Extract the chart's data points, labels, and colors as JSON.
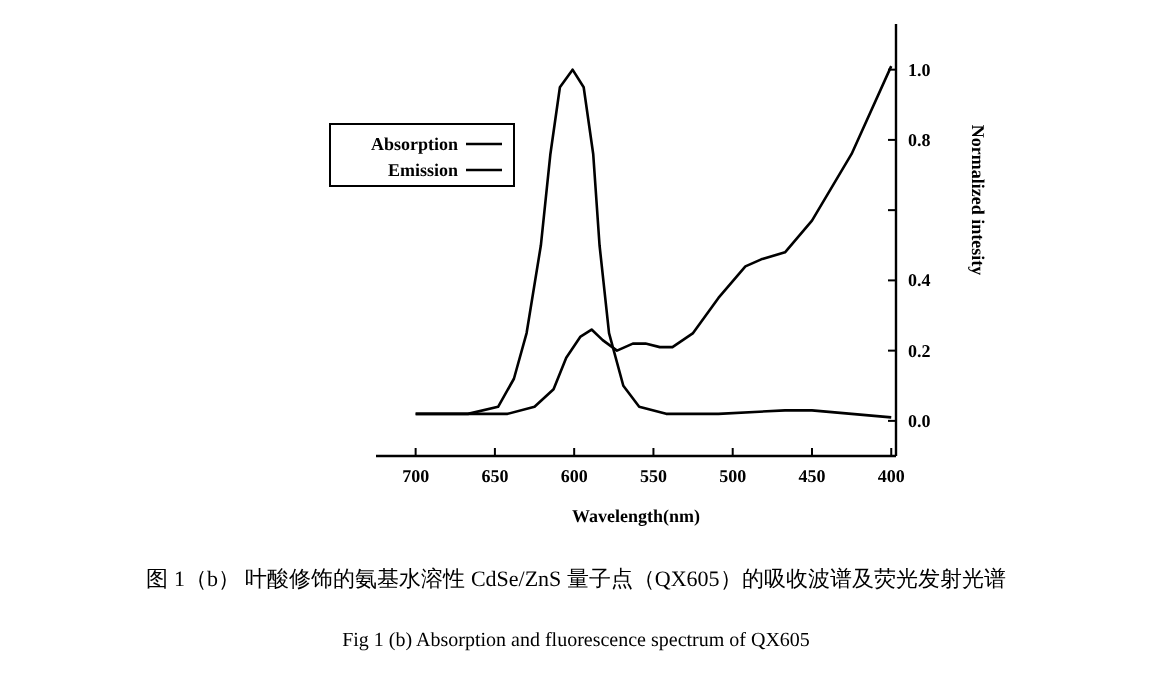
{
  "chart_data": {
    "type": "line",
    "xlabel": "Wavelength(nm)",
    "ylabel": "Normalized intesity",
    "xlim": [
      725,
      397
    ],
    "xticks": [
      400,
      450,
      500,
      550,
      600,
      650,
      700
    ],
    "ylim": [
      -0.1,
      1.13
    ],
    "yticks": [
      {
        "value": 0,
        "label": "0.0"
      },
      {
        "value": 0.2,
        "label": "0.2"
      },
      {
        "value": 0.4,
        "label": "0.4"
      },
      {
        "value": 0.6,
        "label": null
      },
      {
        "value": 0.8,
        "label": "0.8"
      },
      {
        "value": 1,
        "label": "1.0"
      }
    ],
    "legend": "top left",
    "grid": false,
    "series": [
      {
        "name": "Absorption",
        "color": "#000000",
        "x": [
          400,
          425,
          450,
          467,
          482,
          492,
          509,
          525,
          538,
          546,
          555,
          563,
          573,
          582,
          589,
          596,
          605,
          613,
          625,
          642,
          675,
          700
        ],
        "values": [
          1.01,
          0.76,
          0.57,
          0.48,
          0.46,
          0.44,
          0.35,
          0.25,
          0.21,
          0.21,
          0.22,
          0.22,
          0.2,
          0.23,
          0.26,
          0.24,
          0.18,
          0.09,
          0.04,
          0.02,
          0.02,
          0.02
        ]
      },
      {
        "name": "Emission",
        "color": "#000000",
        "x": [
          400,
          425,
          450,
          467,
          509,
          542,
          559,
          569,
          578,
          584,
          588,
          594,
          601,
          609,
          615,
          621,
          630,
          638,
          648,
          667,
          700
        ],
        "values": [
          0.01,
          0.02,
          0.03,
          0.03,
          0.02,
          0.02,
          0.04,
          0.1,
          0.25,
          0.5,
          0.76,
          0.95,
          1.0,
          0.95,
          0.76,
          0.5,
          0.25,
          0.12,
          0.04,
          0.02,
          0.02
        ]
      }
    ],
    "annotations": [
      "图 1（b） 叶酸修饰的氨基水溶性 CdSe/ZnS 量子点（QX605）的吸收波谱及荧光发射光谱",
      "Fig 1 (b) Absorption and fluorescence spectrum of QX605"
    ]
  }
}
